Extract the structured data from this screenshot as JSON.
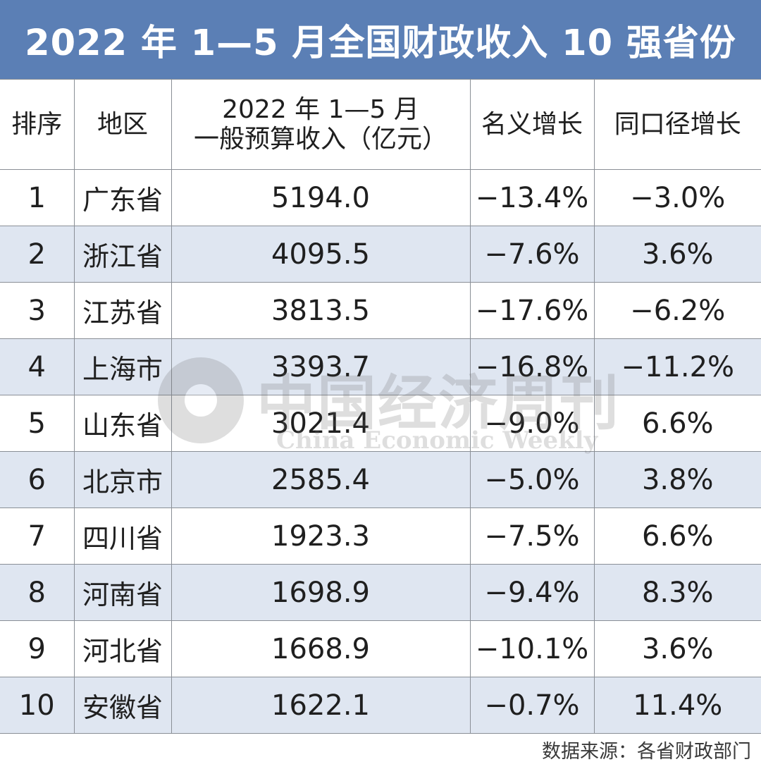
{
  "title": "2022 年 1—5 月全国财政收入 10 强省份",
  "table": {
    "headers": {
      "rank": "排序",
      "region": "地区",
      "revenue_line1": "2022 年 1—5 月",
      "revenue_line2": "一般预算收入（亿元）",
      "nominal": "名义增长",
      "comparable": "同口径增长"
    },
    "rows": [
      {
        "rank": "1",
        "region": "广东省",
        "revenue": "5194.0",
        "nominal": "−13.4%",
        "comparable": "−3.0%"
      },
      {
        "rank": "2",
        "region": "浙江省",
        "revenue": "4095.5",
        "nominal": "−7.6%",
        "comparable": "3.6%"
      },
      {
        "rank": "3",
        "region": "江苏省",
        "revenue": "3813.5",
        "nominal": "−17.6%",
        "comparable": "−6.2%"
      },
      {
        "rank": "4",
        "region": "上海市",
        "revenue": "3393.7",
        "nominal": "−16.8%",
        "comparable": "−11.2%"
      },
      {
        "rank": "5",
        "region": "山东省",
        "revenue": "3021.4",
        "nominal": "−9.0%",
        "comparable": "6.6%"
      },
      {
        "rank": "6",
        "region": "北京市",
        "revenue": "2585.4",
        "nominal": "−5.0%",
        "comparable": "3.8%"
      },
      {
        "rank": "7",
        "region": "四川省",
        "revenue": "1923.3",
        "nominal": "−7.5%",
        "comparable": "6.6%"
      },
      {
        "rank": "8",
        "region": "河南省",
        "revenue": "1698.9",
        "nominal": "−9.4%",
        "comparable": "8.3%"
      },
      {
        "rank": "9",
        "region": "河北省",
        "revenue": "1668.9",
        "nominal": "−10.1%",
        "comparable": "3.6%"
      },
      {
        "rank": "10",
        "region": "安徽省",
        "revenue": "1622.1",
        "nominal": "−0.7%",
        "comparable": "11.4%"
      }
    ]
  },
  "source": "数据来源：各省财政部门",
  "watermark": {
    "cn": "中国经济周刊",
    "en": "China Economic Weekly"
  },
  "colors": {
    "title_bg": "#5b7fb5",
    "stripe": "#dfe6f1",
    "border": "#8a8f96"
  }
}
